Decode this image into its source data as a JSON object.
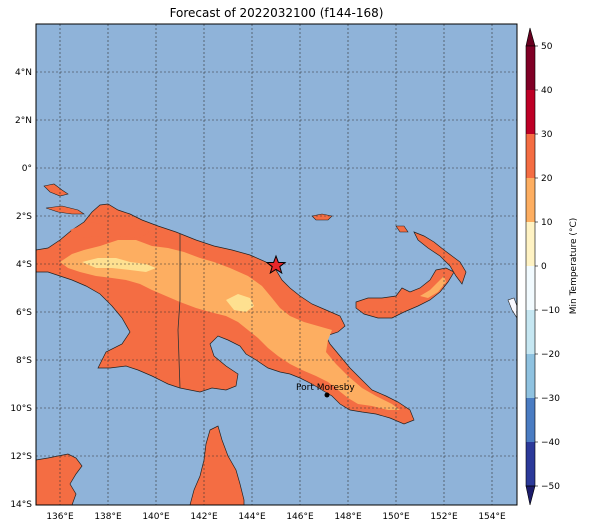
{
  "title": "Forecast of 2022032100 (f144-168)",
  "map": {
    "lon_ticks": [
      "136°E",
      "138°E",
      "140°E",
      "142°E",
      "144°E",
      "146°E",
      "148°E",
      "150°E",
      "152°E",
      "154°E"
    ],
    "lat_ticks": [
      "4°N",
      "2°N",
      "0°",
      "2°S",
      "4°S",
      "6°S",
      "8°S",
      "10°S",
      "12°S",
      "14°S"
    ],
    "extent": {
      "lon_min": 135,
      "lon_max": 155,
      "lat_min": -14,
      "lat_max": 6
    },
    "ocean_color": "#8fb3d9",
    "land_colors": {
      "20_30": "#f46d43",
      "10_20": "#fdae61",
      "0_10": "#fee090"
    },
    "marker": {
      "label": "star",
      "lon": 145.0,
      "lat": -4.0
    },
    "city": {
      "name": "Port Moresby",
      "lon": 147.2,
      "lat": -9.45
    }
  },
  "colorbar": {
    "label": "Min Temperature (°C)",
    "ticks": [
      "50",
      "40",
      "30",
      "20",
      "10",
      "0",
      "−10",
      "−20",
      "−30",
      "−40",
      "−50"
    ],
    "colors": [
      "#67001f",
      "#b2182b",
      "#d6301f",
      "#f46d43",
      "#fdae61",
      "#fee090",
      "#ffffbf",
      "#e0f3f8",
      "#abd9e9",
      "#74add1",
      "#4575b4",
      "#313695",
      "#1c1c6b"
    ]
  }
}
